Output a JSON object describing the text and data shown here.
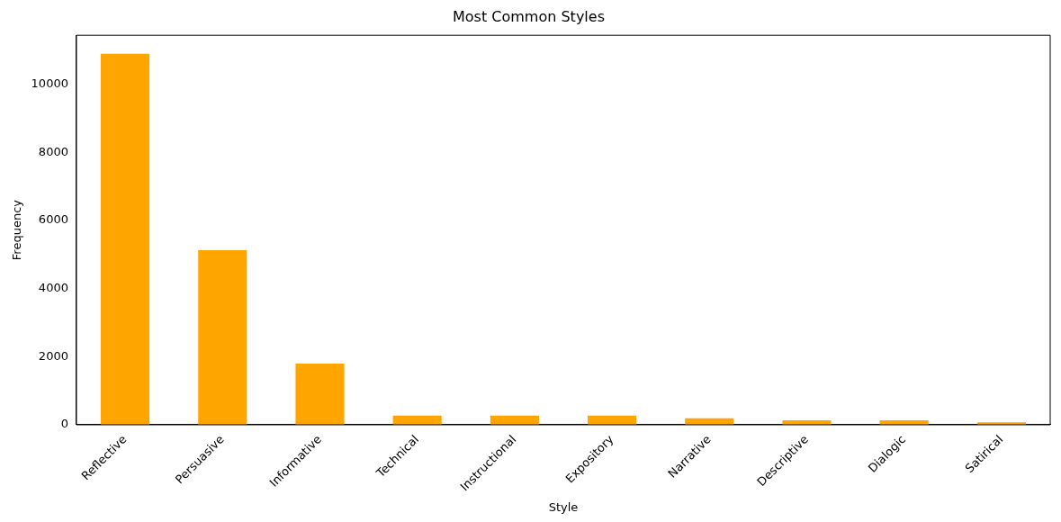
{
  "chart_data": {
    "type": "bar",
    "title": "Most Common Styles",
    "xlabel": "Style",
    "ylabel": "Frequency",
    "categories": [
      "Reflective",
      "Persuasive",
      "Informative",
      "Technical",
      "Instructional",
      "Expository",
      "Narrative",
      "Descriptive",
      "Dialogic",
      "Satirical"
    ],
    "values": [
      10900,
      5130,
      1800,
      270,
      270,
      270,
      190,
      130,
      130,
      75
    ],
    "color": "#ffa500",
    "ylim": [
      0,
      11440
    ],
    "yticks": [
      0,
      2000,
      4000,
      6000,
      8000,
      10000
    ],
    "grid": false,
    "legend": false
  }
}
